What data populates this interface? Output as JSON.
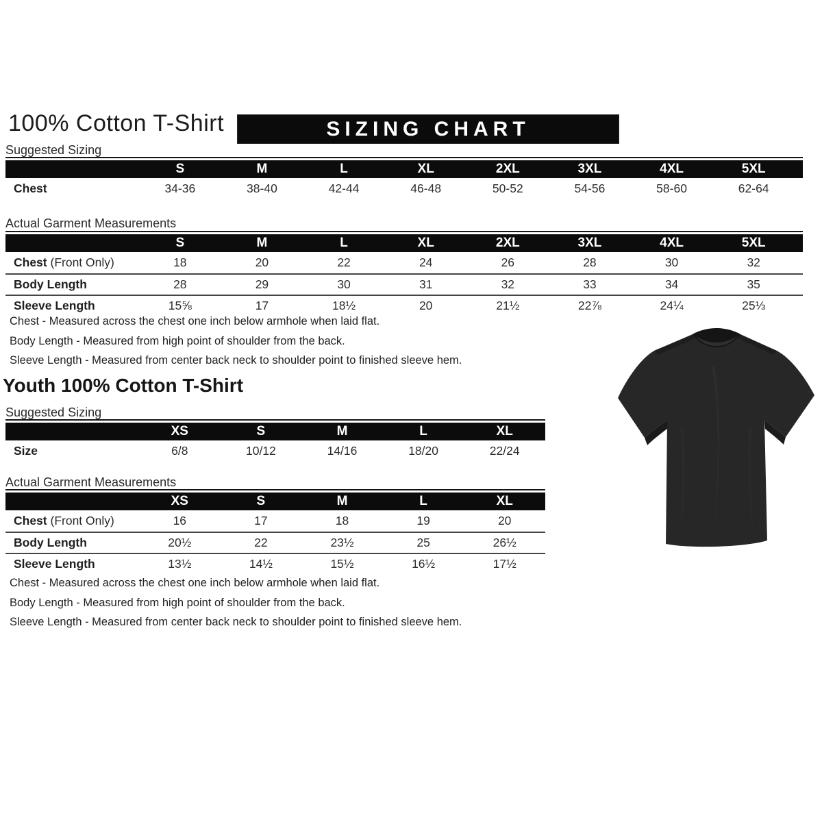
{
  "adult": {
    "title": "100% Cotton T-Shirt",
    "banner": "SIZING CHART",
    "suggested": {
      "label": "Suggested Sizing",
      "columns": [
        "S",
        "M",
        "L",
        "XL",
        "2XL",
        "3XL",
        "4XL",
        "5XL"
      ],
      "rows": [
        {
          "label": "Chest",
          "suffix": "",
          "values": [
            "34-36",
            "38-40",
            "42-44",
            "46-48",
            "50-52",
            "54-56",
            "58-60",
            "62-64"
          ]
        }
      ]
    },
    "actual": {
      "label": "Actual Garment Measurements",
      "columns": [
        "S",
        "M",
        "L",
        "XL",
        "2XL",
        "3XL",
        "4XL",
        "5XL"
      ],
      "rows": [
        {
          "label": "Chest",
          "suffix": " (Front Only)",
          "values": [
            "18",
            "20",
            "22",
            "24",
            "26",
            "28",
            "30",
            "32"
          ]
        },
        {
          "label": "Body Length",
          "suffix": "",
          "values": [
            "28",
            "29",
            "30",
            "31",
            "32",
            "33",
            "34",
            "35"
          ]
        },
        {
          "label": "Sleeve Length",
          "suffix": "",
          "values": [
            "15⅝",
            "17",
            "18½",
            "20",
            "21½",
            "22⅞",
            "24¼",
            "25⅓"
          ]
        }
      ]
    },
    "notes": [
      "Chest - Measured across the chest one inch below armhole when laid flat.",
      "Body Length - Measured from high point of shoulder from the back.",
      "Sleeve Length - Measured from center back neck to shoulder point to finished sleeve hem."
    ]
  },
  "youth": {
    "title": "Youth 100% Cotton T-Shirt",
    "suggested": {
      "label": "Suggested Sizing",
      "columns": [
        "XS",
        "S",
        "M",
        "L",
        "XL"
      ],
      "rows": [
        {
          "label": "Size",
          "suffix": "",
          "values": [
            "6/8",
            "10/12",
            "14/16",
            "18/20",
            "22/24"
          ]
        }
      ]
    },
    "actual": {
      "label": "Actual Garment Measurements",
      "columns": [
        "XS",
        "S",
        "M",
        "L",
        "XL"
      ],
      "rows": [
        {
          "label": "Chest",
          "suffix": " (Front Only)",
          "values": [
            "16",
            "17",
            "18",
            "19",
            "20"
          ]
        },
        {
          "label": "Body Length",
          "suffix": "",
          "values": [
            "20½",
            "22",
            "23½",
            "25",
            "26½"
          ]
        },
        {
          "label": "Sleeve Length",
          "suffix": "",
          "values": [
            "13½",
            "14½",
            "15½",
            "16½",
            "17½"
          ]
        }
      ]
    },
    "notes": [
      "Chest - Measured across the chest one inch below armhole when laid flat.",
      "Body Length - Measured from high point of shoulder from the back.",
      "Sleeve Length - Measured from center back neck to shoulder point to finished sleeve hem."
    ]
  },
  "image": {
    "tshirt_alt": "black short-sleeve t-shirt",
    "colors": {
      "shirt_body": "#272727",
      "shirt_shadow": "#1a1a1a",
      "banner_bg": "#0b0b0b",
      "text": "#242424"
    }
  }
}
